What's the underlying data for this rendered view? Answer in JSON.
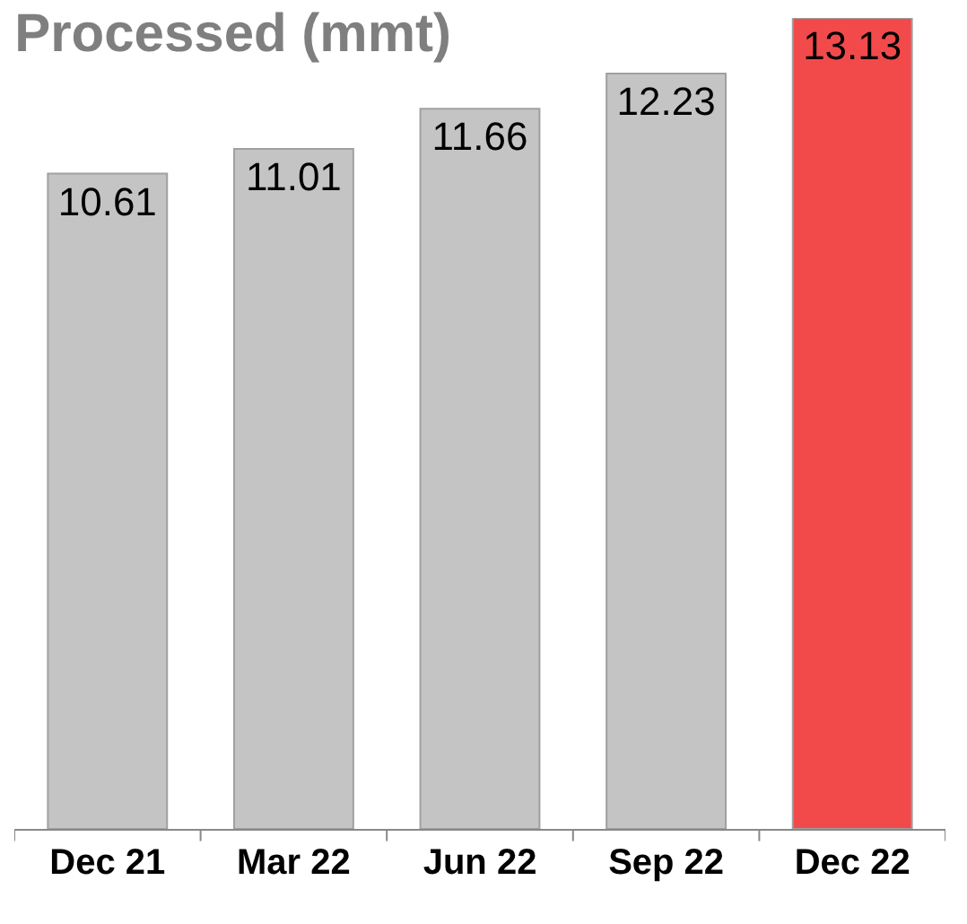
{
  "chart_data": {
    "type": "bar",
    "title": "Processed (mmt)",
    "categories": [
      "Dec 21",
      "Mar 22",
      "Jun 22",
      "Sep 22",
      "Dec 22"
    ],
    "values": [
      10.61,
      11.01,
      11.66,
      12.23,
      13.13
    ],
    "colors": [
      "#c4c4c4",
      "#c4c4c4",
      "#c4c4c4",
      "#c4c4c4",
      "#f24a4a"
    ],
    "data_labels": true
  }
}
